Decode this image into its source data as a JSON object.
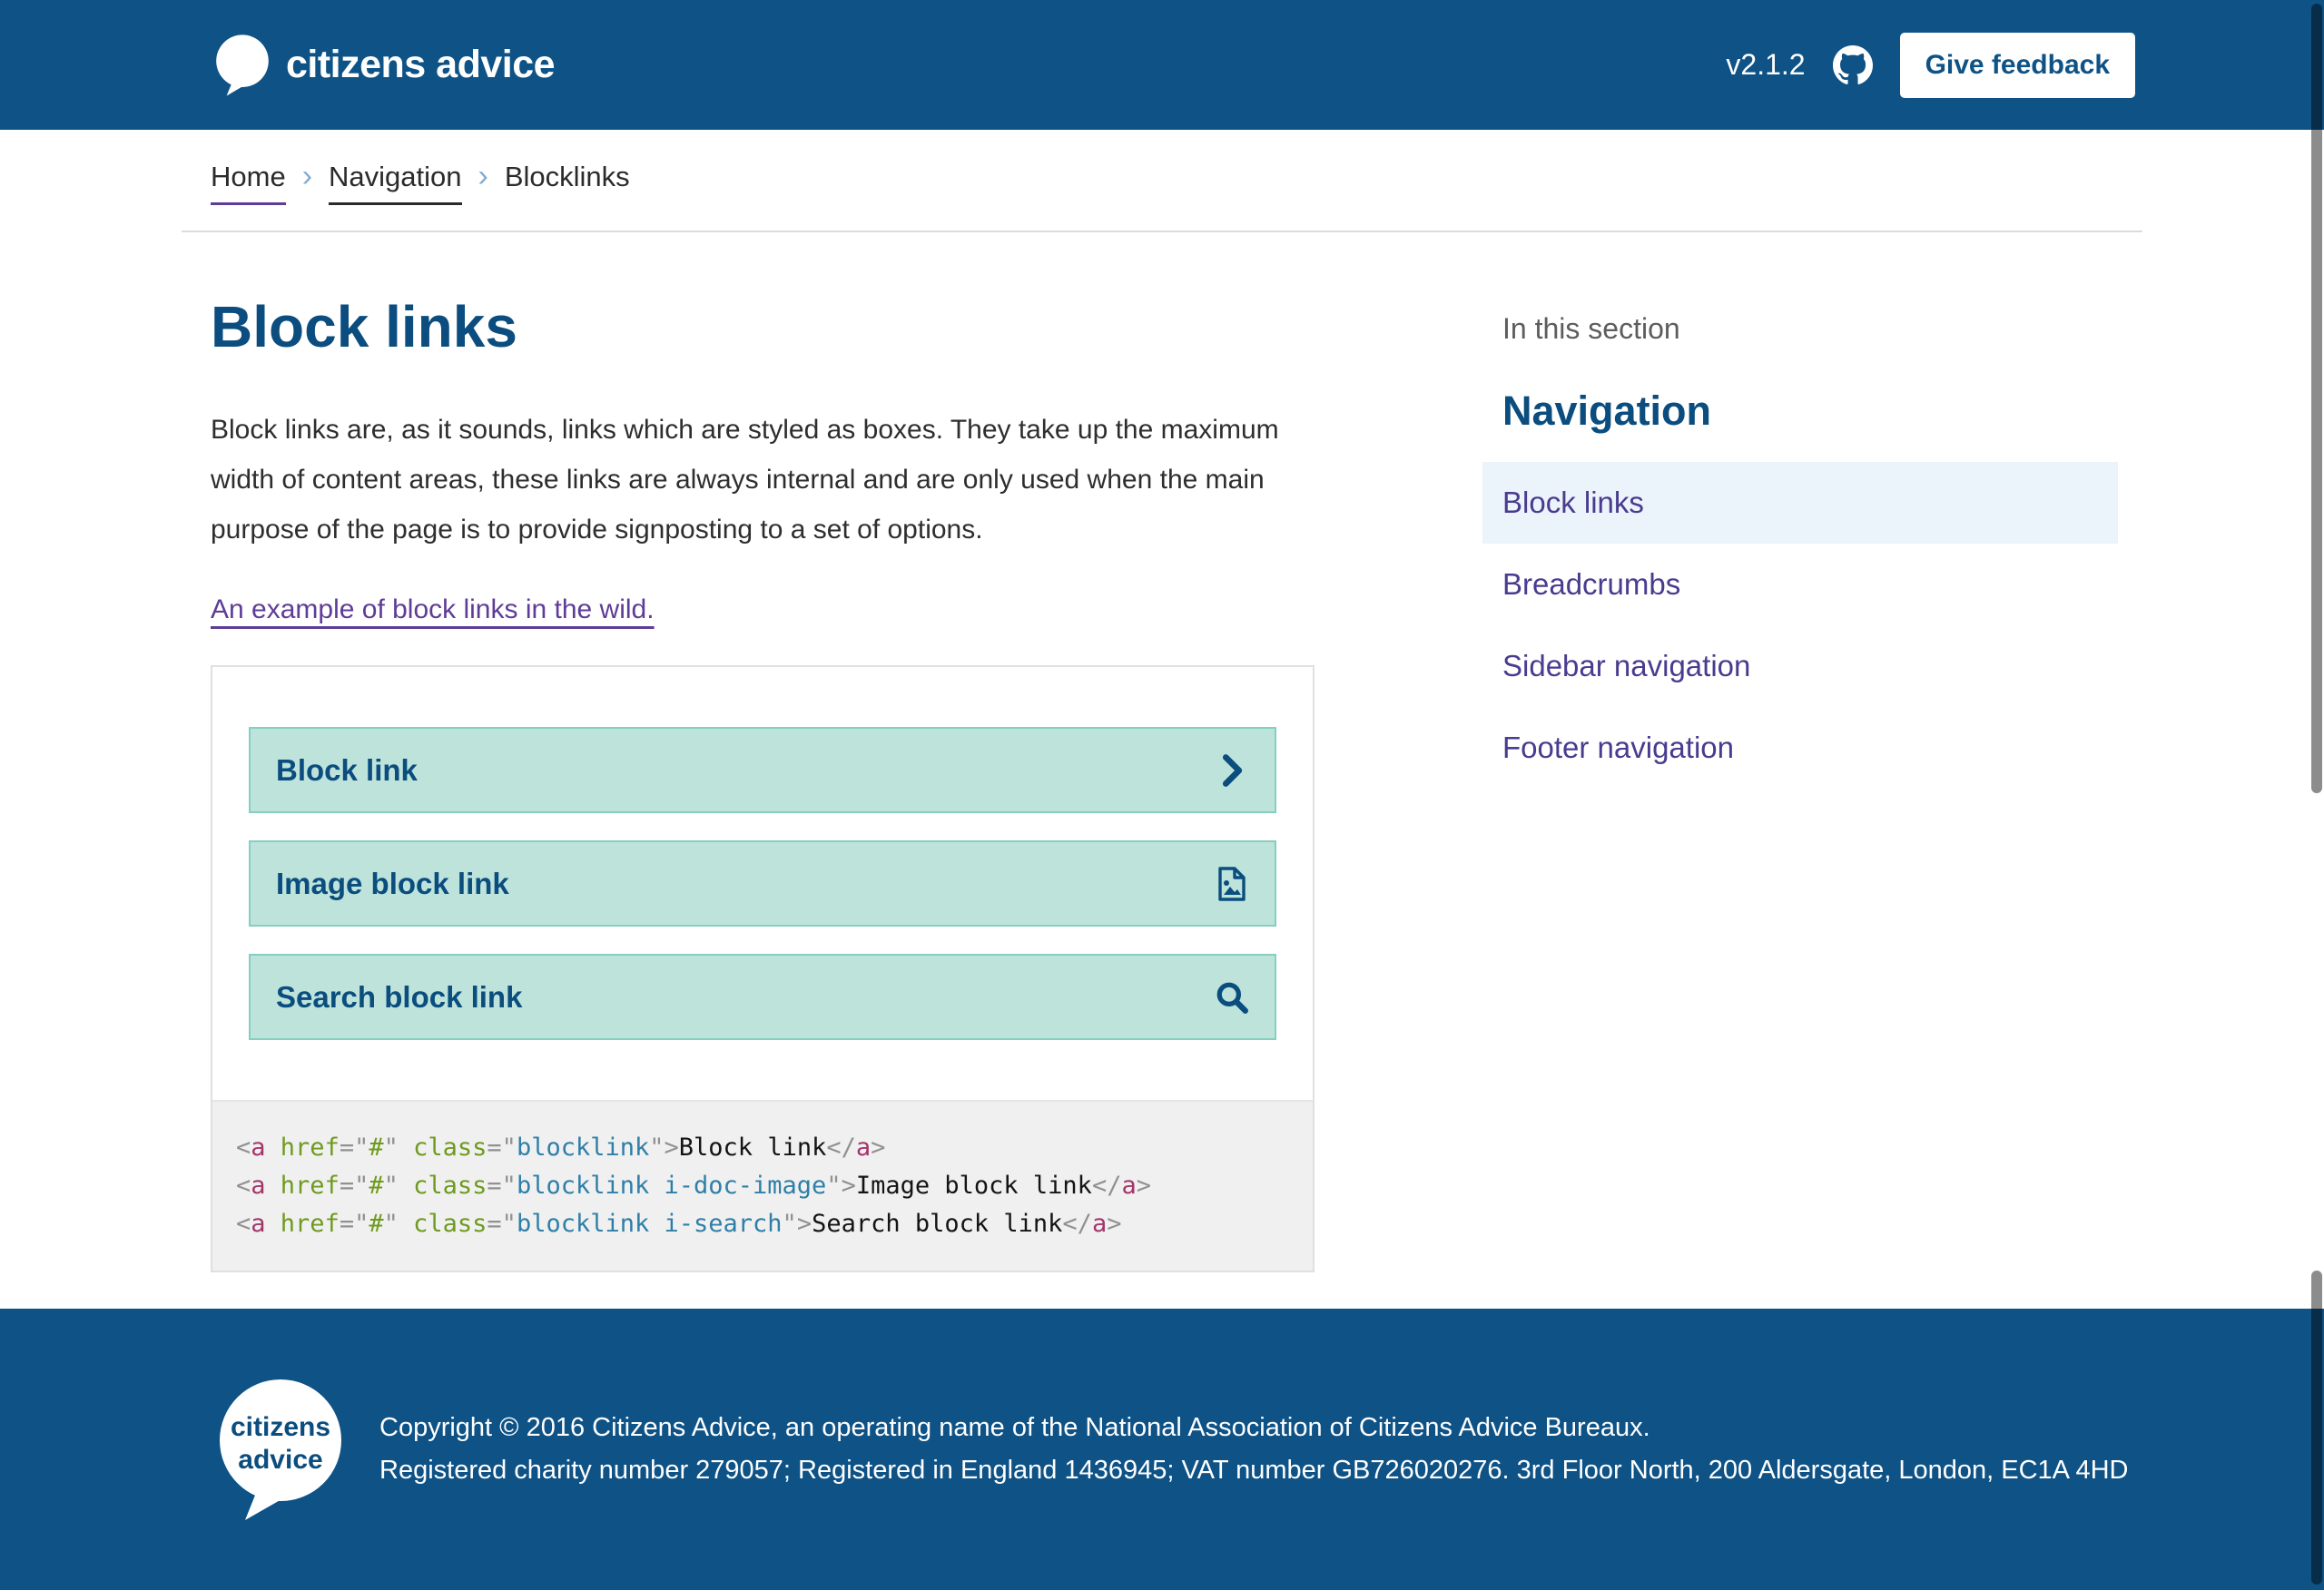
{
  "colors": {
    "brand_blue": "#0e5286",
    "heading_blue": "#0a4d7e",
    "teal_bg": "#bee3da",
    "teal_border": "#85cfc2",
    "visited_purple": "#5e3c97",
    "sidebar_purple": "#4a3b8f",
    "active_bg": "#ebf3fb"
  },
  "header": {
    "brand": "citizens advice",
    "version": "v2.1.2",
    "feedback_button": "Give feedback"
  },
  "breadcrumb": {
    "items": [
      "Home",
      "Navigation",
      "Blocklinks"
    ]
  },
  "page": {
    "title": "Block links",
    "intro": "Block links are, as it sounds, links which are styled as boxes. They take up the maximum width of content areas, these links are always internal and are only used when the main purpose of the page is to provide signposting to a set of options.",
    "example_link": "An example of block links in the wild."
  },
  "examples": {
    "block_links": [
      {
        "label": "Block link",
        "icon": "chevron-right-icon"
      },
      {
        "label": "Image block link",
        "icon": "doc-image-icon"
      },
      {
        "label": "Search block link",
        "icon": "search-icon"
      }
    ],
    "code_lines": [
      [
        [
          "p",
          "<"
        ],
        [
          "t",
          "a"
        ],
        [
          "x",
          " "
        ],
        [
          "a",
          "href"
        ],
        [
          "p",
          "=\""
        ],
        [
          "g",
          "#"
        ],
        [
          "p",
          "\""
        ],
        [
          "x",
          " "
        ],
        [
          "a",
          "class"
        ],
        [
          "p",
          "=\""
        ],
        [
          "v",
          "blocklink"
        ],
        [
          "p",
          "\""
        ],
        [
          "p",
          ">"
        ],
        [
          "x",
          "Block link"
        ],
        [
          "p",
          "</"
        ],
        [
          "t",
          "a"
        ],
        [
          "p",
          ">"
        ]
      ],
      [
        [
          "p",
          "<"
        ],
        [
          "t",
          "a"
        ],
        [
          "x",
          " "
        ],
        [
          "a",
          "href"
        ],
        [
          "p",
          "=\""
        ],
        [
          "g",
          "#"
        ],
        [
          "p",
          "\""
        ],
        [
          "x",
          " "
        ],
        [
          "a",
          "class"
        ],
        [
          "p",
          "=\""
        ],
        [
          "v",
          "blocklink i-doc-image"
        ],
        [
          "p",
          "\""
        ],
        [
          "p",
          ">"
        ],
        [
          "x",
          "Image block link"
        ],
        [
          "p",
          "</"
        ],
        [
          "t",
          "a"
        ],
        [
          "p",
          ">"
        ]
      ],
      [
        [
          "p",
          "<"
        ],
        [
          "t",
          "a"
        ],
        [
          "x",
          " "
        ],
        [
          "a",
          "href"
        ],
        [
          "p",
          "=\""
        ],
        [
          "g",
          "#"
        ],
        [
          "p",
          "\""
        ],
        [
          "x",
          " "
        ],
        [
          "a",
          "class"
        ],
        [
          "p",
          "=\""
        ],
        [
          "v",
          "blocklink i-search"
        ],
        [
          "p",
          "\""
        ],
        [
          "p",
          ">"
        ],
        [
          "x",
          "Search block link"
        ],
        [
          "p",
          "</"
        ],
        [
          "t",
          "a"
        ],
        [
          "p",
          ">"
        ]
      ]
    ]
  },
  "sidebar": {
    "section_label": "In this section",
    "heading": "Navigation",
    "items": [
      {
        "label": "Block links",
        "active": true
      },
      {
        "label": "Breadcrumbs",
        "active": false
      },
      {
        "label": "Sidebar navigation",
        "active": false
      },
      {
        "label": "Footer navigation",
        "active": false
      }
    ]
  },
  "footer": {
    "logo_line1": "citizens",
    "logo_line2": "advice",
    "copyright_line1": "Copyright © 2016 Citizens Advice, an operating name of the National Association of Citizens Advice Bureaux.",
    "copyright_line2": "Registered charity number 279057; Registered in England 1436945; VAT number GB726020276. 3rd Floor North, 200 Aldersgate, London, EC1A 4HD"
  }
}
